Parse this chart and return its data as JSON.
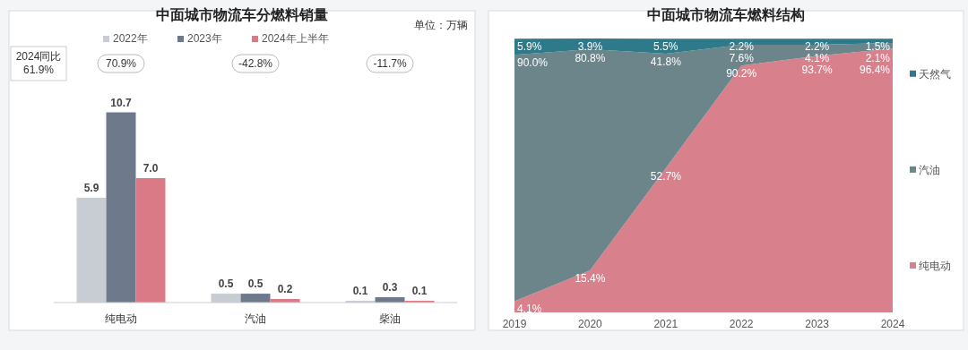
{
  "chart_data": [
    {
      "type": "bar",
      "title": "中面城市物流车分燃料销量",
      "ylabel": "单位：万辆",
      "categories": [
        "纯电动",
        "汽油",
        "柴油"
      ],
      "tick_labels": "x",
      "legend": "top",
      "grid": false,
      "series": [
        {
          "name": "2022年",
          "color": "#c8cdd3",
          "values": [
            5.9,
            0.5,
            0.1
          ],
          "value_labels": [
            "5.9",
            "0.5",
            "0.1"
          ]
        },
        {
          "name": "2023年",
          "color": "#6e7a8c",
          "values": [
            10.7,
            0.5,
            0.3
          ],
          "value_labels": [
            "10.7",
            "0.5",
            "0.3"
          ]
        },
        {
          "name": "2024年上半年",
          "color": "#d97a86",
          "values": [
            7.0,
            0.2,
            0.1
          ],
          "value_labels": [
            "7.0",
            "0.2",
            "0.1"
          ]
        }
      ],
      "annotations": [
        "2024同比\n61.9%",
        "70.9%",
        "-42.8%",
        "-11.7%"
      ]
    },
    {
      "type": "area",
      "title": "中面城市物流车燃料结构",
      "stacked": true,
      "categories": [
        "2019",
        "2020",
        "2021",
        "2022",
        "2023",
        "2024"
      ],
      "tick_labels": "x",
      "legend": "right",
      "grid": false,
      "series": [
        {
          "name": "纯电动",
          "color": "#d9808d",
          "values": [
            4.1,
            15.4,
            52.7,
            90.2,
            93.7,
            96.4
          ],
          "value_labels": [
            "4.1%",
            "15.4%",
            "52.7%",
            "90.2%",
            "93.7%",
            "96.4%"
          ]
        },
        {
          "name": "汽油",
          "color": "#6b858b",
          "values": [
            90.0,
            80.8,
            41.8,
            7.6,
            4.1,
            2.1
          ],
          "value_labels": [
            "90.0%",
            "80.8%",
            "41.8%",
            "7.6%",
            "4.1%",
            "2.1%"
          ]
        },
        {
          "name": "天然气",
          "color": "#2e7a8a",
          "values": [
            5.9,
            3.9,
            5.5,
            2.2,
            2.2,
            1.5
          ],
          "value_labels": [
            "5.9%",
            "3.9%",
            "5.5%",
            "2.2%",
            "2.2%",
            "1.5%"
          ]
        }
      ]
    }
  ]
}
